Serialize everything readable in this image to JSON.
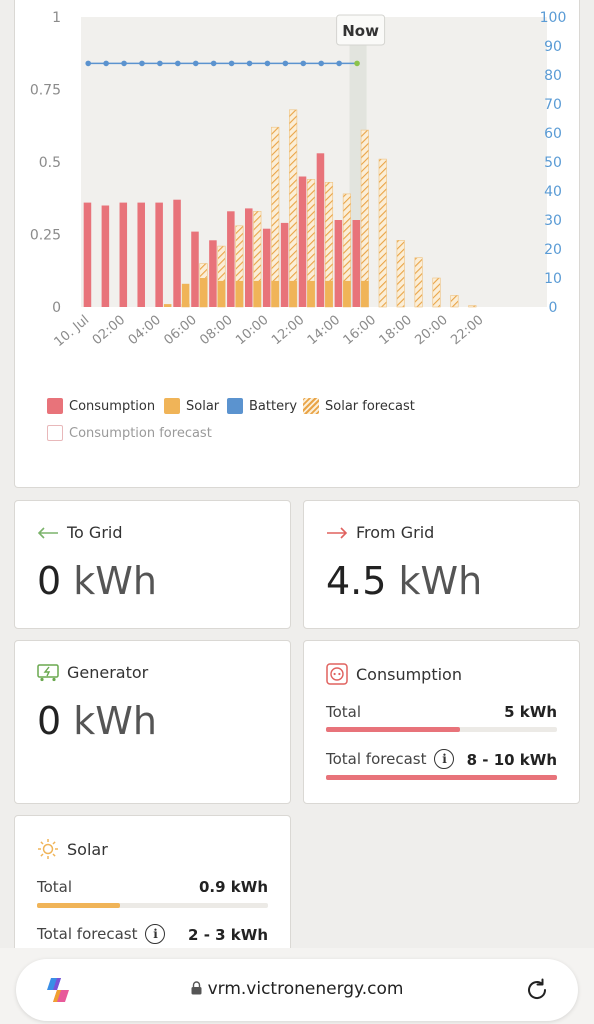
{
  "chart_data": {
    "type": "bar",
    "now_label": "Now",
    "y_left_ticks": [
      "0",
      "0.25",
      "0.5",
      "0.75",
      "1"
    ],
    "y_right_ticks": [
      "0",
      "10",
      "20",
      "30",
      "40",
      "50",
      "60",
      "70",
      "80",
      "90",
      "100"
    ],
    "x_tick_labels": [
      "10. Jul",
      "02:00",
      "04:00",
      "06:00",
      "08:00",
      "10:00",
      "12:00",
      "14:00",
      "16:00",
      "18:00",
      "20:00",
      "22:00"
    ],
    "y_left_range": [
      0,
      1
    ],
    "y_right_range": [
      0,
      100
    ],
    "hours": [
      0,
      1,
      2,
      3,
      4,
      5,
      6,
      7,
      8,
      9,
      10,
      11,
      12,
      13,
      14,
      15,
      16,
      17,
      18,
      19,
      20,
      21,
      22,
      23
    ],
    "now_hour": 15,
    "series": [
      {
        "name": "Consumption",
        "color": "#e8737a",
        "values": [
          0.36,
          0.35,
          0.36,
          0.36,
          0.36,
          0.37,
          0.26,
          0.23,
          0.33,
          0.34,
          0.27,
          0.29,
          0.45,
          0.53,
          0.3,
          0.3,
          null,
          null,
          null,
          null,
          null,
          null,
          null,
          null
        ]
      },
      {
        "name": "Solar",
        "color": "#f0b458",
        "values": [
          0,
          0,
          0,
          0,
          0.01,
          0.08,
          0.1,
          0.09,
          0.09,
          0.09,
          0.09,
          0.09,
          0.09,
          0.09,
          0.09,
          0.09,
          null,
          null,
          null,
          null,
          null,
          null,
          null,
          null
        ]
      },
      {
        "name": "Battery",
        "color": "#5b93cf",
        "values": [
          84,
          84,
          84,
          84,
          84,
          84,
          84,
          84,
          84,
          84,
          84,
          84,
          84,
          84,
          84,
          84
        ]
      },
      {
        "name": "Solar forecast",
        "color": "#f0b458",
        "values": [
          0,
          0,
          0,
          0,
          0,
          0.01,
          0.15,
          0.21,
          0.28,
          0.33,
          0.62,
          0.68,
          0.44,
          0.43,
          0.39,
          0.61,
          0.51,
          0.23,
          0.17,
          0.1,
          0.04,
          0.005,
          0,
          0
        ]
      },
      {
        "name": "Consumption forecast",
        "color": "#e8b8ba",
        "values": []
      }
    ]
  },
  "legend": [
    {
      "label": "Consumption",
      "color": "#e8737a",
      "style": "solid"
    },
    {
      "label": "Solar",
      "color": "#f0b458",
      "style": "solid"
    },
    {
      "label": "Battery",
      "color": "#5b93cf",
      "style": "solid"
    },
    {
      "label": "Solar forecast",
      "color": "#f0b458",
      "style": "hatched"
    },
    {
      "label": "Consumption forecast",
      "color": "#e8b8ba",
      "style": "outline"
    }
  ],
  "to_grid": {
    "title": "To Grid",
    "value": "0",
    "unit": "kWh",
    "arrow_color": "#7bb36b"
  },
  "from_grid": {
    "title": "From Grid",
    "value": "4.5",
    "unit": "kWh",
    "arrow_color": "#e0625f"
  },
  "generator": {
    "title": "Generator",
    "value": "0",
    "unit": "kWh",
    "icon_color": "#6aa84f"
  },
  "consumption": {
    "title": "Consumption",
    "total_label": "Total",
    "total_value": "5 kWh",
    "total_fraction": 0.58,
    "forecast_label": "Total forecast",
    "forecast_value": "8 - 10 kWh",
    "forecast_fraction": 1.0,
    "color": "#e8737a"
  },
  "solar": {
    "title": "Solar",
    "total_label": "Total",
    "total_value": "0.9 kWh",
    "total_fraction": 0.36,
    "forecast_label": "Total forecast",
    "forecast_value": "2 - 3 kWh",
    "color": "#f0b458"
  },
  "browser": {
    "url": "vrm.victronenergy.com"
  }
}
